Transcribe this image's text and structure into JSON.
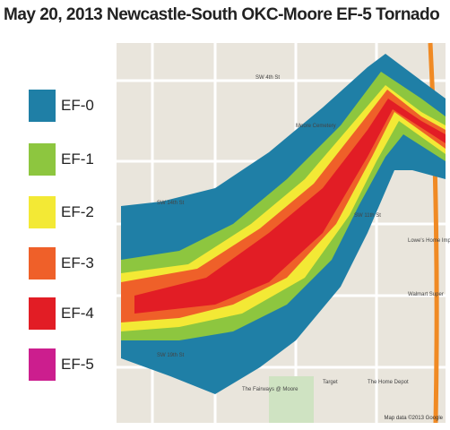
{
  "header": {
    "title": "May 20, 2013 Newcastle-South OKC-Moore EF-5 Tornado"
  },
  "legend": {
    "items": [
      {
        "label": "EF-0",
        "color": "#1f7fa6"
      },
      {
        "label": "EF-1",
        "color": "#8dc63f"
      },
      {
        "label": "EF-2",
        "color": "#f3e935"
      },
      {
        "label": "EF-3",
        "color": "#ef6029"
      },
      {
        "label": "EF-4",
        "color": "#e21d25"
      },
      {
        "label": "EF-5",
        "color": "#cc1e8e"
      }
    ]
  },
  "map": {
    "labels": [
      "SW 4th St",
      "SW 11th St",
      "SW 14th St",
      "SW 19th St",
      "Moore Cemetery",
      "Lowe's Home Improvement",
      "Walmart Super",
      "Target",
      "The Home Depot",
      "The Fairways @ Moore"
    ],
    "attribution": "Map data ©2013 Google"
  }
}
